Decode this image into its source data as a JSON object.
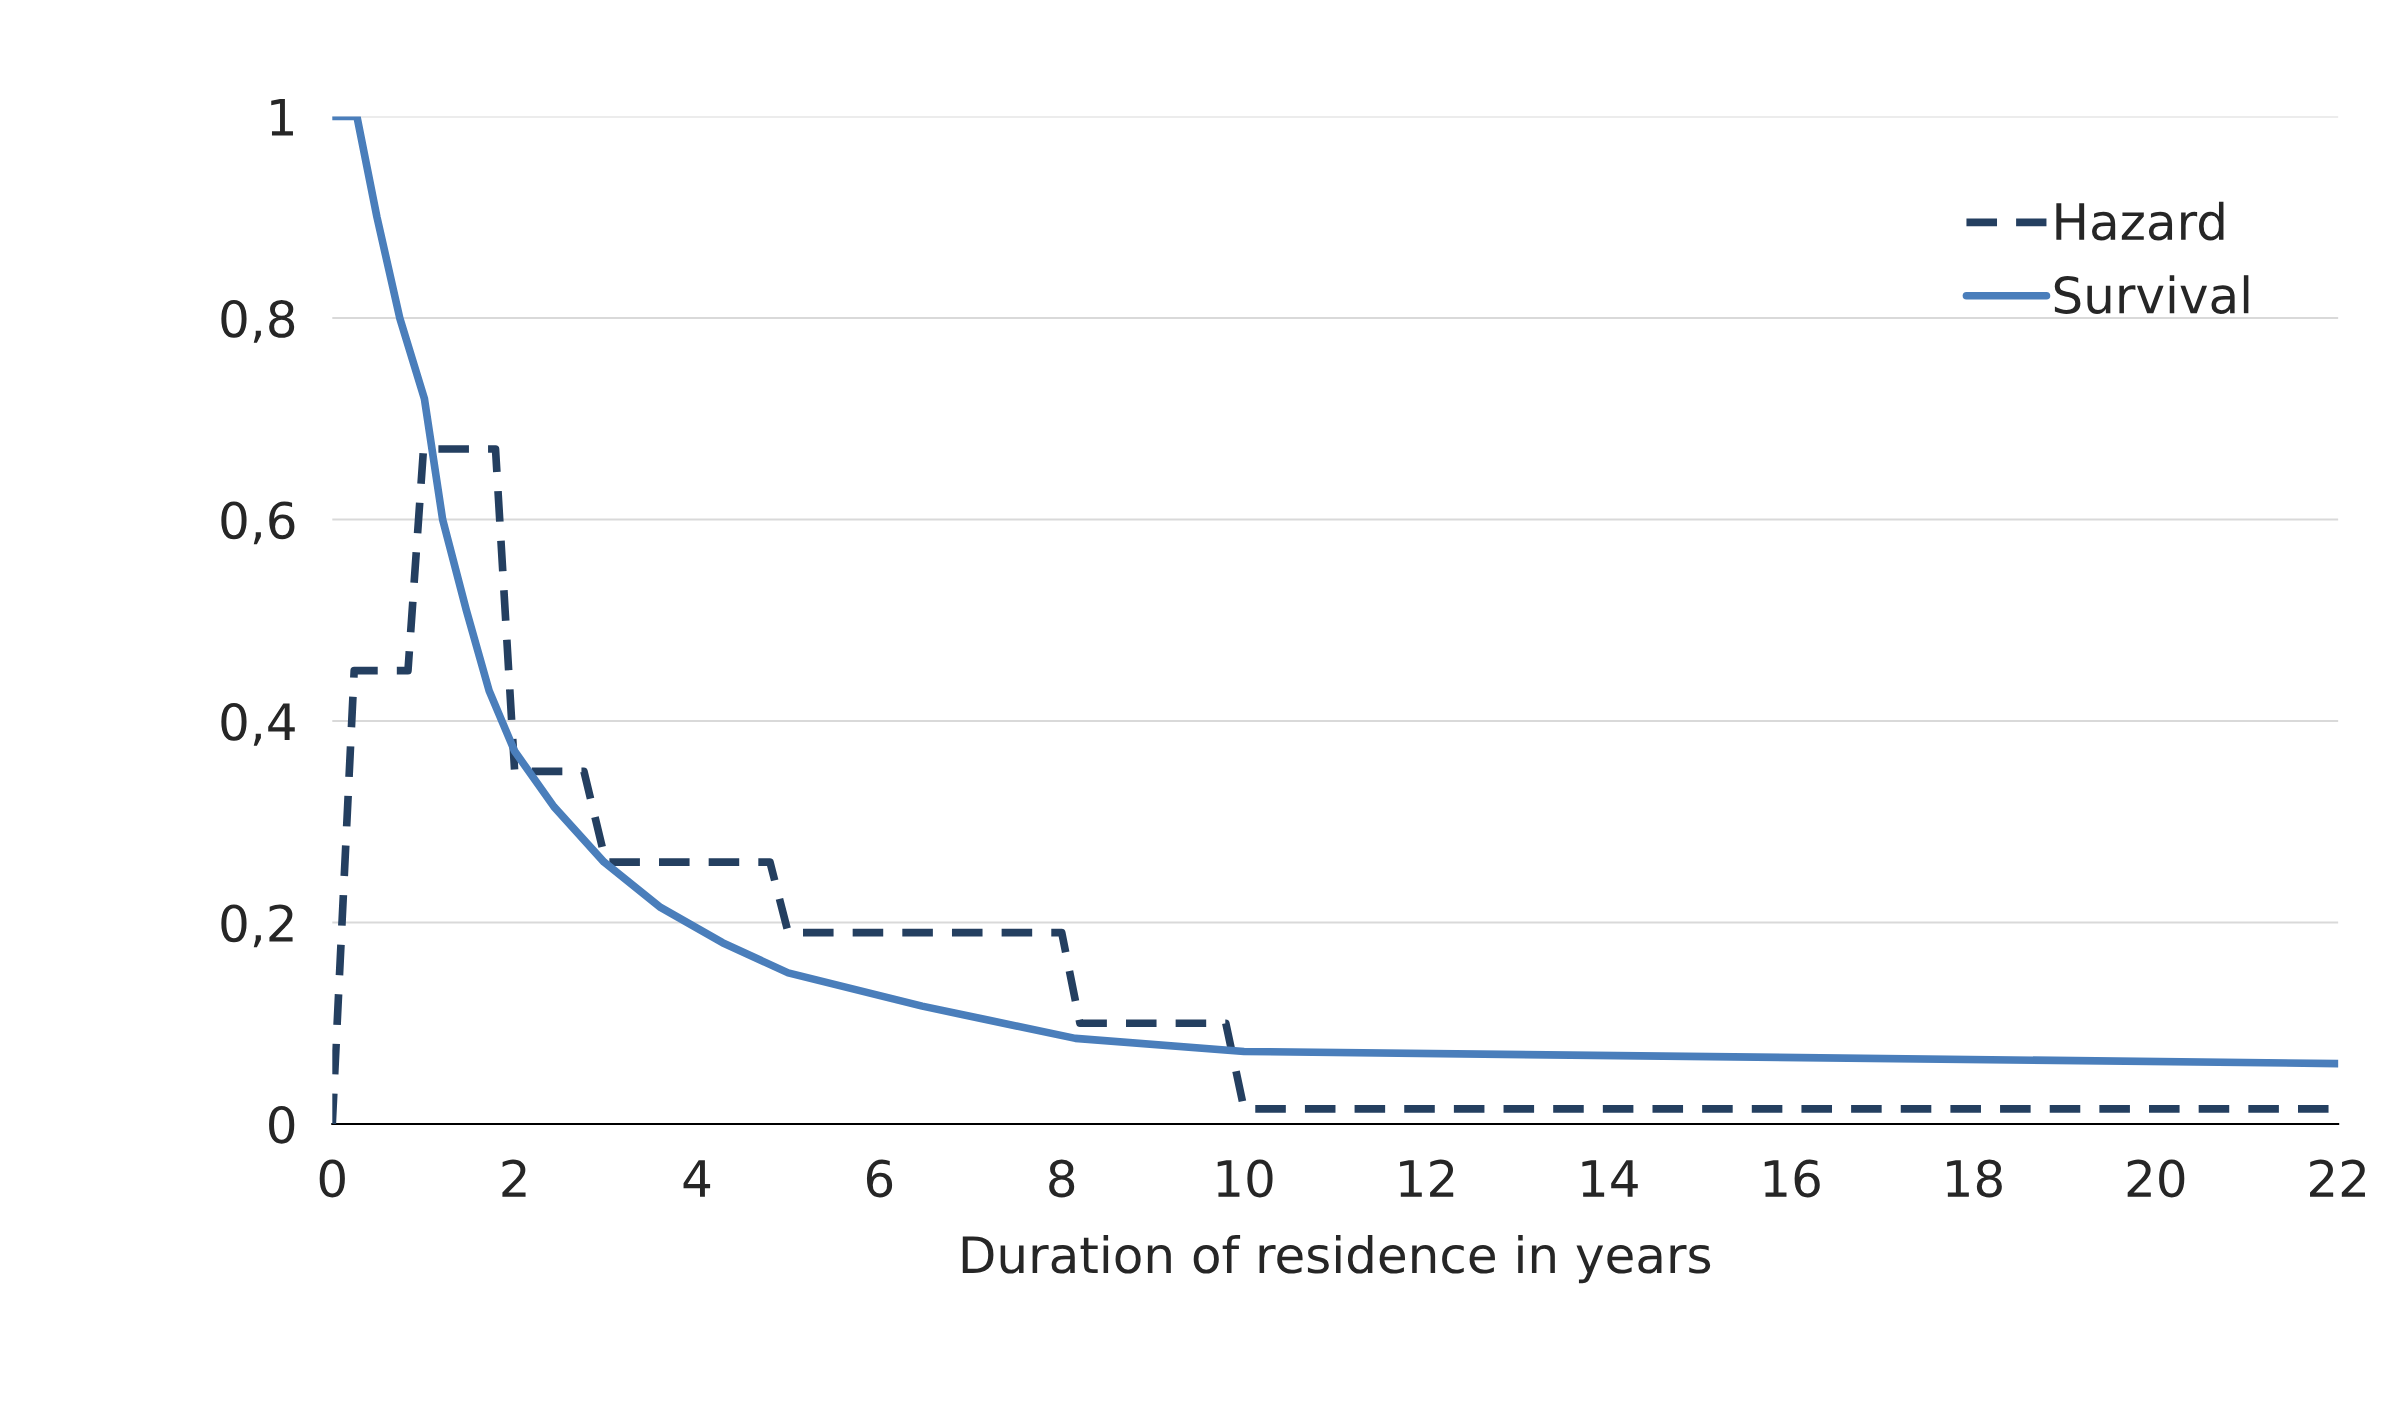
{
  "chart_data": {
    "type": "line",
    "xlabel": "Duration of residence in years",
    "xlim": [
      0,
      22
    ],
    "xticks": [
      0,
      2,
      4,
      6,
      8,
      10,
      12,
      14,
      16,
      18,
      20,
      22
    ],
    "ylim": [
      0,
      1
    ],
    "yticks": [
      0,
      {
        "value": 0.2,
        "label": "0,2"
      },
      {
        "value": 0.4,
        "label": "0,4"
      },
      {
        "value": 0.6,
        "label": "0,6"
      },
      {
        "value": 0.8,
        "label": "0,8"
      },
      1
    ],
    "grid": "y",
    "legend": "top right",
    "series": [
      {
        "name": "Hazard",
        "color": "#243f60",
        "line_style": "dashed",
        "x": [
          0,
          0.24,
          0.83,
          1.0,
          1.79,
          2.0,
          2.76,
          3.0,
          4.8,
          5.0,
          8.0,
          8.2,
          9.8,
          10.0,
          22
        ],
        "values": [
          0,
          0.45,
          0.45,
          0.67,
          0.67,
          0.35,
          0.35,
          0.26,
          0.26,
          0.19,
          0.19,
          0.1,
          0.1,
          0.015,
          0.015
        ]
      },
      {
        "name": "Survival",
        "color": "#4a7ebb",
        "line_style": "solid",
        "x": [
          0,
          0.27,
          0.49,
          0.74,
          1.01,
          1.21,
          1.47,
          1.72,
          2.0,
          2.43,
          2.98,
          3.6,
          4.28,
          5.0,
          6.47,
          8.15,
          10,
          22
        ],
        "values": [
          1.0,
          1.0,
          0.9,
          0.8,
          0.72,
          0.6,
          0.51,
          0.43,
          0.37,
          0.315,
          0.26,
          0.215,
          0.18,
          0.15,
          0.117,
          0.085,
          0.072,
          0.06
        ]
      }
    ]
  }
}
